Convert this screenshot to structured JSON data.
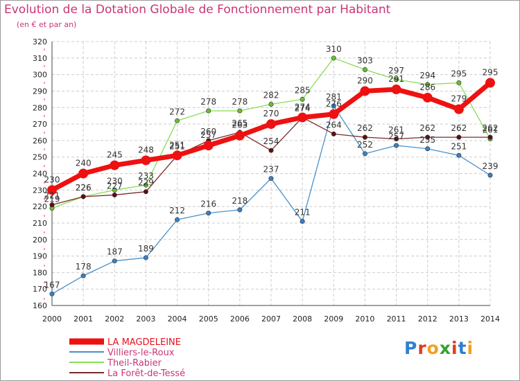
{
  "title": "Evolution de la Dotation Globale de Fonctionnement par Habitant",
  "subtitle": "(en € et par an)",
  "logo": {
    "text": "Proxiti",
    "letter_colors": [
      "#2f7fd0",
      "#e23a1b",
      "#f0a020",
      "#33a033",
      "#e23a1b",
      "#2f7fd0",
      "#f0a020"
    ]
  },
  "chart_data": {
    "type": "line",
    "x": [
      "2000",
      "2001",
      "2002",
      "2003",
      "2004",
      "2005",
      "2006",
      "2007",
      "2008",
      "2009",
      "2010",
      "2011",
      "2012",
      "2013",
      "2014"
    ],
    "ylim": [
      160,
      320
    ],
    "yticks": [
      "160",
      "170",
      "180",
      "190",
      "200",
      "210",
      "220",
      "230",
      "240",
      "250",
      "260",
      "270",
      "280",
      "290",
      "300",
      "310",
      "320"
    ],
    "grid": true,
    "legend_position": "bottom-left",
    "series": [
      {
        "name": "Villiers-le-Roux",
        "color": "#4a90c8",
        "marker_color": "#3a80c0",
        "values": [
          167,
          178,
          187,
          189,
          212,
          216,
          218,
          237,
          211,
          281,
          252,
          257,
          255,
          251,
          239
        ],
        "labels": [
          "167",
          "178",
          "187",
          "189",
          "212",
          "216",
          "218",
          "237",
          "211",
          "281",
          "252",
          "257",
          "255",
          "251",
          "239"
        ]
      },
      {
        "name": "Theil-Rabier",
        "color": "#88dd55",
        "marker_color": "#66c030",
        "values": [
          219,
          226,
          230,
          233,
          272,
          278,
          278,
          282,
          285,
          310,
          303,
          297,
          294,
          295,
          261
        ],
        "labels": [
          "219",
          "226",
          "230",
          "233",
          "272",
          "278",
          "278",
          "282",
          "285",
          "310",
          "303",
          "297",
          "294",
          "295",
          "261"
        ]
      },
      {
        "name": "La Forêt-de-Tessé",
        "color": "#7a2a2a",
        "marker_color": "#5a1010",
        "values": [
          221,
          226,
          227,
          229,
          251,
          260,
          265,
          254,
          274,
          264,
          262,
          261,
          262,
          262,
          262
        ],
        "labels": [
          "221",
          "226",
          "227",
          "229",
          "251",
          "260",
          "265",
          "254",
          "274",
          "264",
          "262",
          "261",
          "262",
          "262",
          "262"
        ]
      },
      {
        "name": "LA MAGDELEINE",
        "color": "#ee1111",
        "marker_color": "#ee1111",
        "thick": true,
        "values": [
          230,
          240,
          245,
          248,
          251,
          257,
          263,
          270,
          274,
          276,
          290,
          291,
          286,
          279,
          295
        ],
        "labels": [
          "230",
          "240",
          "245",
          "248",
          "251",
          "257",
          "263",
          "270",
          "274",
          "276",
          "290",
          "291",
          "286",
          "279",
          "295"
        ]
      }
    ],
    "legend": [
      "LA MAGDELEINE",
      "Villiers-le-Roux",
      "Theil-Rabier",
      "La Forêt-de-Tessé"
    ]
  }
}
